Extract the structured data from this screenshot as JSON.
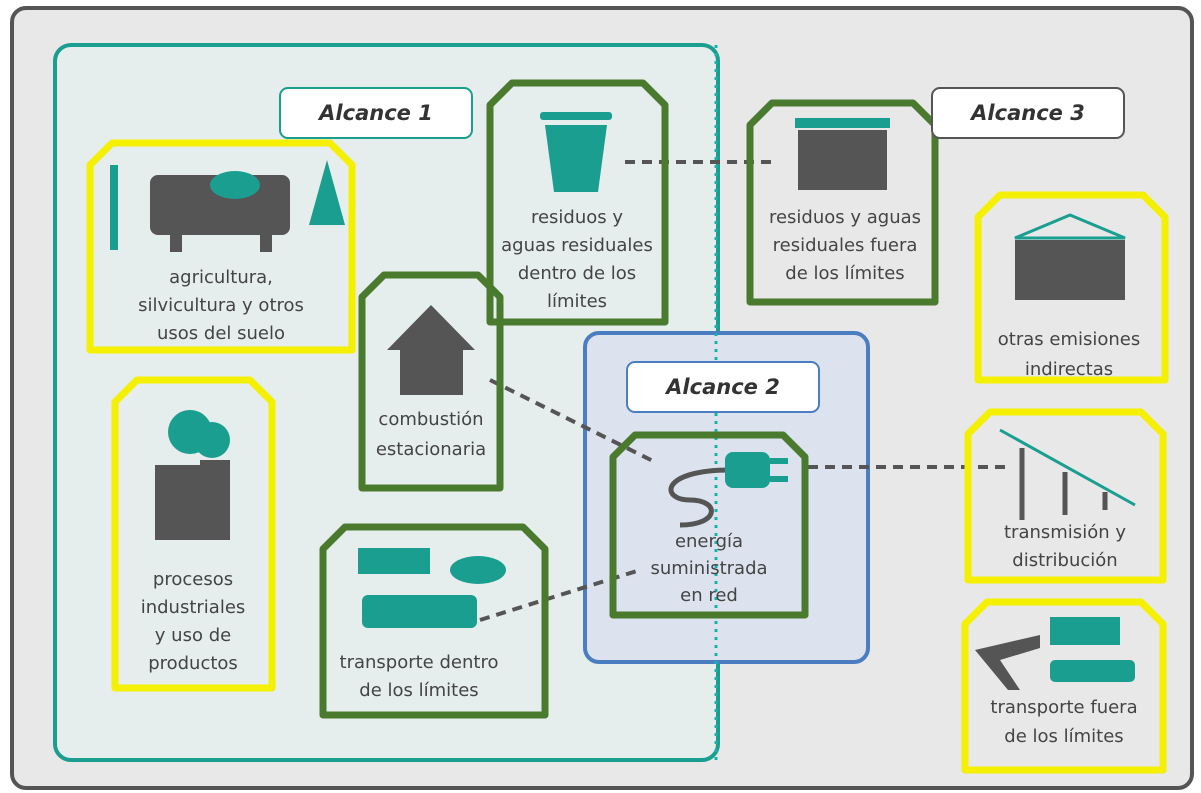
{
  "scopes": [
    "Alcance 1",
    "Alcance 2",
    "Alcance 3"
  ],
  "nodes": [
    [
      "agricultura,",
      "silvicultura y otros",
      "usos del suelo"
    ],
    [
      "procesos",
      "industriales",
      "y uso de",
      "productos"
    ],
    [
      "residuos y",
      "aguas residuales",
      "dentro de los",
      "límites"
    ],
    [
      "combustión",
      "estacionaria"
    ],
    [
      "transporte dentro",
      "de los límites"
    ],
    [
      "energía",
      "suministrada",
      "en red"
    ],
    [
      "residuos y aguas",
      "residuales fuera",
      "de los límites"
    ],
    [
      "otras emisiones",
      "indirectas"
    ],
    [
      "transmisión y",
      "distribución"
    ],
    [
      "transporte fuera",
      "de los límites"
    ]
  ]
}
